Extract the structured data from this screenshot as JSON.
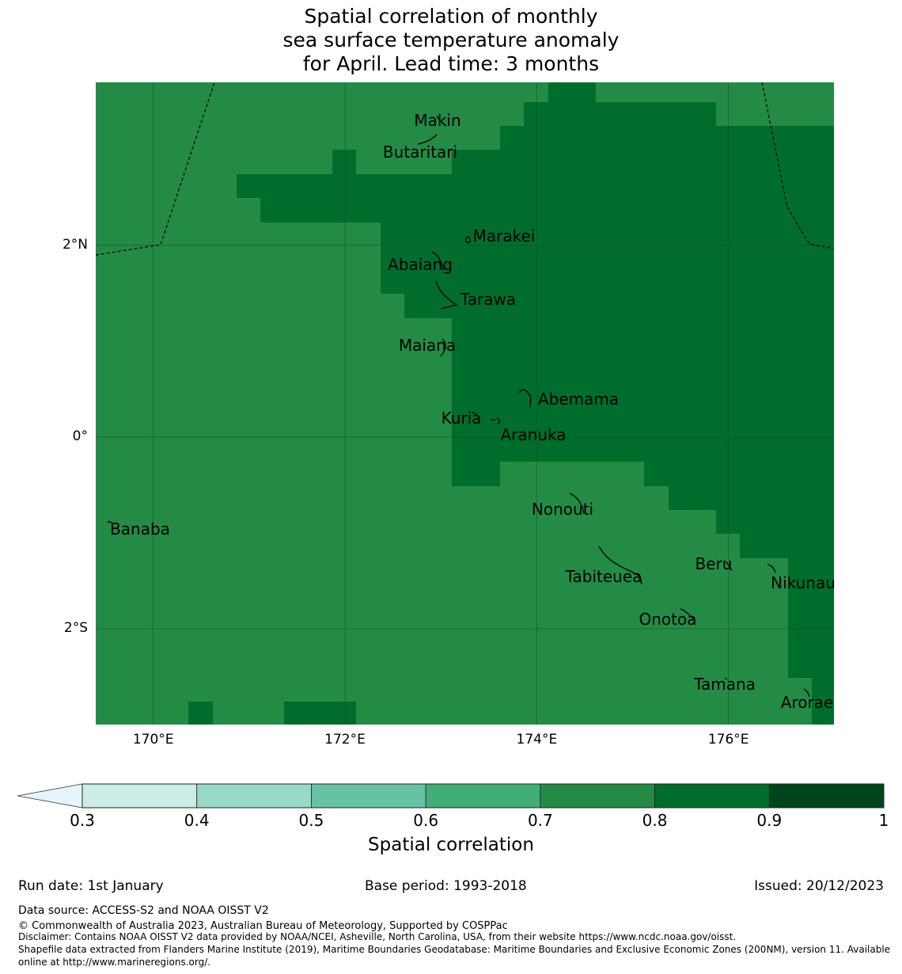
{
  "title": {
    "line1": "Spatial correlation of monthly",
    "line2": "sea surface temperature anomaly",
    "line3": "for April. Lead time: 3 months"
  },
  "map": {
    "extent": {
      "lon_min": 169.4,
      "lon_max": 177.1,
      "lat_min": -3.0,
      "lat_max": 3.7
    },
    "lon_ticks": [
      {
        "value": 170,
        "label": "170°E"
      },
      {
        "value": 172,
        "label": "172°E"
      },
      {
        "value": 174,
        "label": "174°E"
      },
      {
        "value": 176,
        "label": "176°E"
      }
    ],
    "lat_ticks": [
      {
        "value": 2,
        "label": "2°N"
      },
      {
        "value": 0,
        "label": "0°"
      },
      {
        "value": -2,
        "label": "2°S"
      }
    ],
    "colors": {
      "band_07_08": "#238b45",
      "band_08_09": "#006d2c",
      "gridline": "#1a4d2a",
      "boundary": "#000000"
    },
    "islands": [
      {
        "name": "Makin",
        "lon": 172.98,
        "lat": 3.31
      },
      {
        "name": "Butaritari",
        "lon": 172.83,
        "lat": 3.12
      },
      {
        "name": "Marakei",
        "lon": 173.29,
        "lat": 1.99
      },
      {
        "name": "Abaiang",
        "lon": 172.98,
        "lat": 1.83
      },
      {
        "name": "Tarawa",
        "lon": 173.05,
        "lat": 1.46
      },
      {
        "name": "Maiana",
        "lon": 173.02,
        "lat": 0.94
      },
      {
        "name": "Abemama",
        "lon": 173.87,
        "lat": 0.4
      },
      {
        "name": "Kuria",
        "lon": 173.4,
        "lat": 0.2
      },
      {
        "name": "Aranuka",
        "lon": 173.6,
        "lat": 0.14
      },
      {
        "name": "Nonouti",
        "lon": 174.4,
        "lat": -0.67
      },
      {
        "name": "Banaba",
        "lon": 169.53,
        "lat": -0.88
      },
      {
        "name": "Tabiteuea",
        "lon": 174.78,
        "lat": -1.3
      },
      {
        "name": "Beru",
        "lon": 176.0,
        "lat": -1.33
      },
      {
        "name": "Nikunau",
        "lon": 176.45,
        "lat": -1.35
      },
      {
        "name": "Onotoa",
        "lon": 175.57,
        "lat": -1.85
      },
      {
        "name": "Tamana",
        "lon": 175.98,
        "lat": -2.5
      },
      {
        "name": "Arorae",
        "lon": 176.82,
        "lat": -2.65
      }
    ]
  },
  "colorbar": {
    "ticks": [
      "0.3",
      "0.4",
      "0.5",
      "0.6",
      "0.7",
      "0.8",
      "0.9",
      "1"
    ],
    "colors": [
      "#ccece6",
      "#99d8c9",
      "#66c2a4",
      "#41ae76",
      "#238b45",
      "#006d2c",
      "#00441b"
    ],
    "extend_color": "#e5f5f9",
    "label": "Spatial correlation"
  },
  "footer": {
    "run_date": "Run date: 1st January",
    "base_period": "Base period: 1993-2018",
    "issued": "Issued: 20/12/2023",
    "data_source": "Data source: ACCESS-S2 and NOAA OISST V2",
    "copyright": "© Commonwealth of Australia 2023, Australian Bureau of Meteorology, Supported by COSPPac",
    "disclaimer": "Disclaimer: Contains NOAA OISST V2 data provided by NOAA/NCEI, Asheville, North Carolina, USA, from their website https://www.ncdc.noaa.gov/oisst.",
    "shapefile_1": "Shapefile data extracted from Flanders Marine Institute (2019), Maritime Boundaries Geodatabase: Maritime Boundaries and Exclusive Economic Zones (200NM), version 11. Available",
    "shapefile_2": "online at http://www.marineregions.org/."
  }
}
